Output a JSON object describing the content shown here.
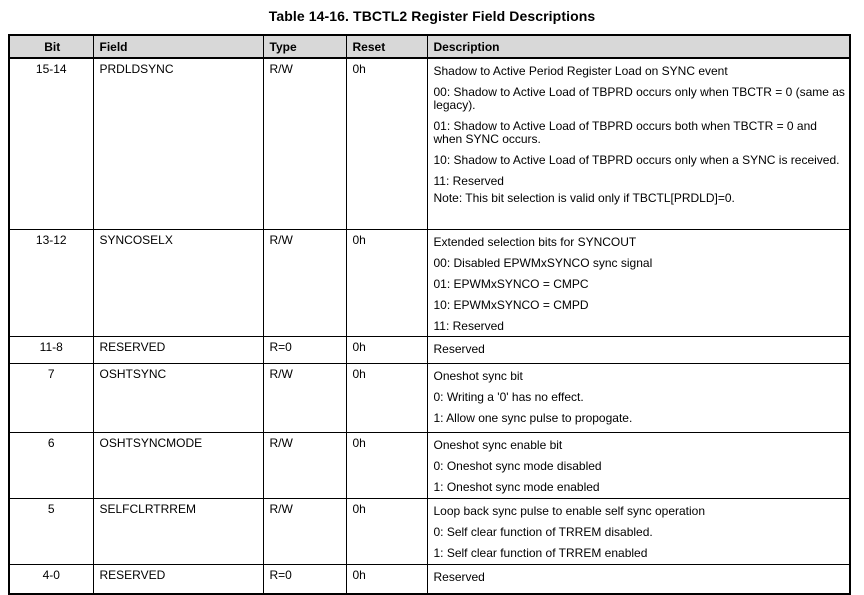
{
  "title": "Table 14-16. TBCTL2 Register Field Descriptions",
  "colors": {
    "header_background": "#d8d8d8",
    "border": "#000000",
    "text": "#000000",
    "page_background": "#ffffff"
  },
  "table": {
    "headers": [
      "Bit",
      "Field",
      "Type",
      "Reset",
      "Description"
    ],
    "rows": [
      {
        "bit": "15-14",
        "field": "PRDLDSYNC",
        "type": "R/W",
        "reset": "0h",
        "description": [
          "Shadow to Active Period Register Load on SYNC event",
          "00: Shadow to Active Load of TBPRD occurs only when TBCTR = 0 (same as legacy).",
          "01: Shadow to Active Load of TBPRD occurs both when TBCTR = 0 and when SYNC occurs.",
          "10: Shadow to Active Load of TBPRD occurs only when a SYNC is received.",
          "11: Reserved",
          "Note: This bit selection is valid only if TBCTL[PRDLD]=0."
        ]
      },
      {
        "bit": "13-12",
        "field": "SYNCOSELX",
        "type": "R/W",
        "reset": "0h",
        "description": [
          "Extended selection bits for SYNCOUT",
          "00: Disabled EPWMxSYNCO sync signal",
          "01: EPWMxSYNCO = CMPC",
          "10: EPWMxSYNCO = CMPD",
          "11: Reserved"
        ]
      },
      {
        "bit": "11-8",
        "field": "RESERVED",
        "type": "R=0",
        "reset": "0h",
        "description": [
          "Reserved"
        ]
      },
      {
        "bit": "7",
        "field": "OSHTSYNC",
        "type": "R/W",
        "reset": "0h",
        "description": [
          "Oneshot sync bit",
          "0: Writing a '0' has no effect.",
          "1: Allow one sync pulse to propogate."
        ]
      },
      {
        "bit": "6",
        "field": "OSHTSYNCMODE",
        "type": "R/W",
        "reset": "0h",
        "description": [
          "Oneshot sync enable bit",
          "0: Oneshot sync mode disabled",
          "1: Oneshot sync mode enabled"
        ]
      },
      {
        "bit": "5",
        "field": "SELFCLRTRREM",
        "type": "R/W",
        "reset": "0h",
        "description": [
          "Loop back sync pulse to enable self sync operation",
          "0: Self clear function of TRREM disabled.",
          "1: Self clear function of TRREM enabled"
        ]
      },
      {
        "bit": "4-0",
        "field": "RESERVED",
        "type": "R=0",
        "reset": "0h",
        "description": [
          "Reserved"
        ]
      }
    ]
  }
}
